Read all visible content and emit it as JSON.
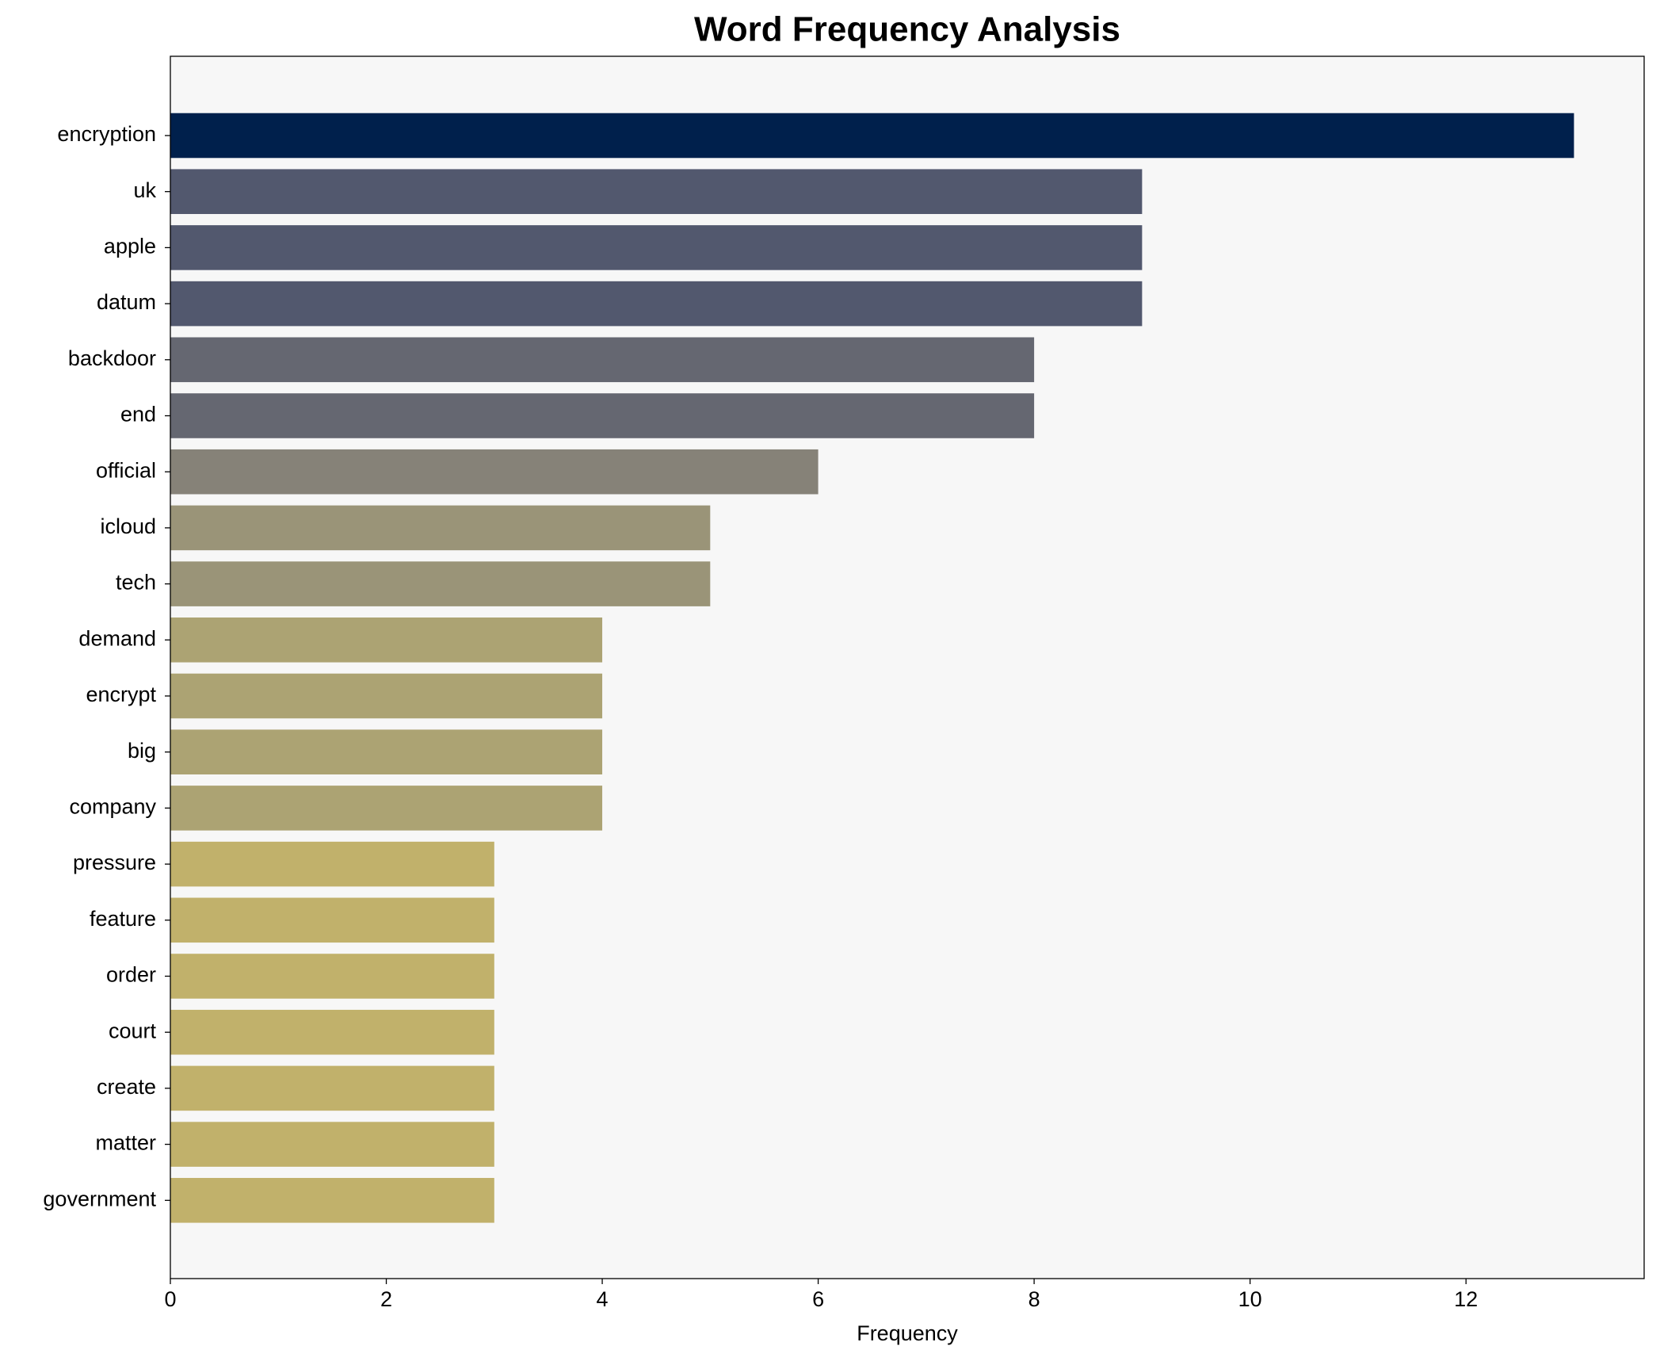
{
  "chart_data": {
    "type": "barh",
    "title": "Word Frequency Analysis",
    "xlabel": "Frequency",
    "categories": [
      "encryption",
      "uk",
      "apple",
      "datum",
      "backdoor",
      "end",
      "official",
      "icloud",
      "tech",
      "demand",
      "encrypt",
      "big",
      "company",
      "pressure",
      "feature",
      "order",
      "court",
      "create",
      "matter",
      "government"
    ],
    "values": [
      13,
      9,
      9,
      9,
      8,
      8,
      6,
      5,
      5,
      4,
      4,
      4,
      4,
      3,
      3,
      3,
      3,
      3,
      3,
      3
    ],
    "colors": [
      "#00204c",
      "#52586e",
      "#52586e",
      "#52586e",
      "#656771",
      "#656771",
      "#868278",
      "#9a9478",
      "#9a9478",
      "#aca373",
      "#aca373",
      "#aca373",
      "#aca373",
      "#c1b16b",
      "#c1b16b",
      "#c1b16b",
      "#c1b16b",
      "#c1b16b",
      "#c1b16b",
      "#c1b16b"
    ],
    "xlim": [
      0,
      13.65
    ],
    "xticks": [
      0,
      2,
      4,
      6,
      8,
      10,
      12
    ]
  }
}
